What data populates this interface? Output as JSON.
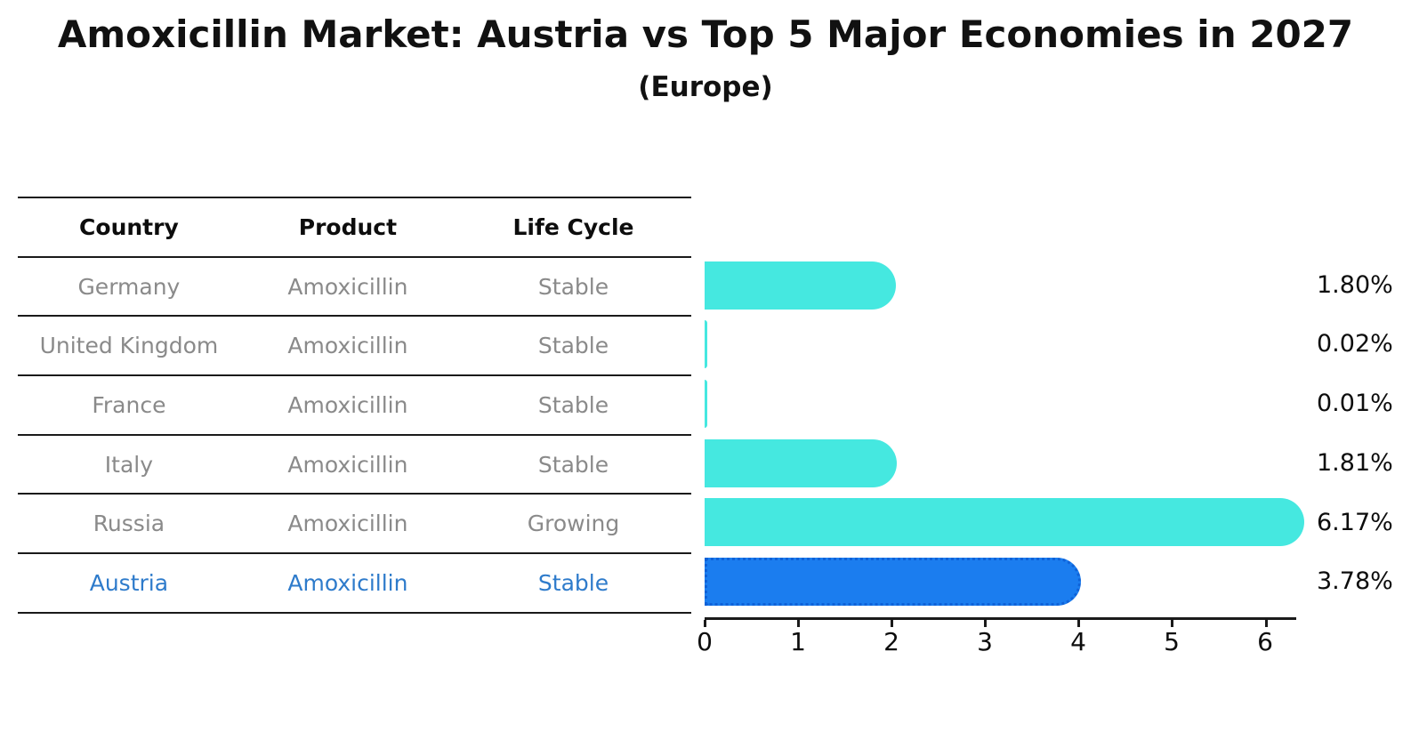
{
  "title": "Amoxicillin Market: Austria vs Top 5 Major Economies in 2027",
  "subtitle": "(Europe)",
  "table": {
    "headers": [
      "Country",
      "Product",
      "Life Cycle"
    ],
    "rows": [
      {
        "country": "Germany",
        "product": "Amoxicillin",
        "life_cycle": "Stable",
        "highlight": false
      },
      {
        "country": "United Kingdom",
        "product": "Amoxicillin",
        "life_cycle": "Stable",
        "highlight": false
      },
      {
        "country": "France",
        "product": "Amoxicillin",
        "life_cycle": "Stable",
        "highlight": false
      },
      {
        "country": "Italy",
        "product": "Amoxicillin",
        "life_cycle": "Stable",
        "highlight": false
      },
      {
        "country": "Russia",
        "product": "Amoxicillin",
        "life_cycle": "Growing",
        "highlight": false
      },
      {
        "country": "Austria",
        "product": "Amoxicillin",
        "life_cycle": "Stable",
        "highlight": true
      }
    ]
  },
  "chart_data": {
    "type": "bar",
    "orientation": "horizontal",
    "title": "Amoxicillin Market: Austria vs Top 5 Major Economies in 2027",
    "subtitle": "(Europe)",
    "categories": [
      "Germany",
      "United Kingdom",
      "France",
      "Italy",
      "Russia",
      "Austria"
    ],
    "values": [
      1.8,
      0.02,
      0.01,
      1.81,
      6.17,
      3.78
    ],
    "value_labels": [
      "1.80%",
      "0.02%",
      "0.01%",
      "1.81%",
      "6.17%",
      "3.78%"
    ],
    "unit": "percent",
    "xlim": [
      0,
      6.31
    ],
    "x_ticks": [
      0,
      1,
      2,
      3,
      4,
      5,
      6
    ],
    "grid": false,
    "legend": false,
    "highlight_category": "Austria",
    "bar_color": "#45e8e0",
    "highlight_bar_color": "#1b7def",
    "highlight_border_color": "#0f62d8",
    "highlight_text_color": "#2e7bcb",
    "row_text_color": "#8a8a8a",
    "axis_color": "#1a1a1a"
  }
}
